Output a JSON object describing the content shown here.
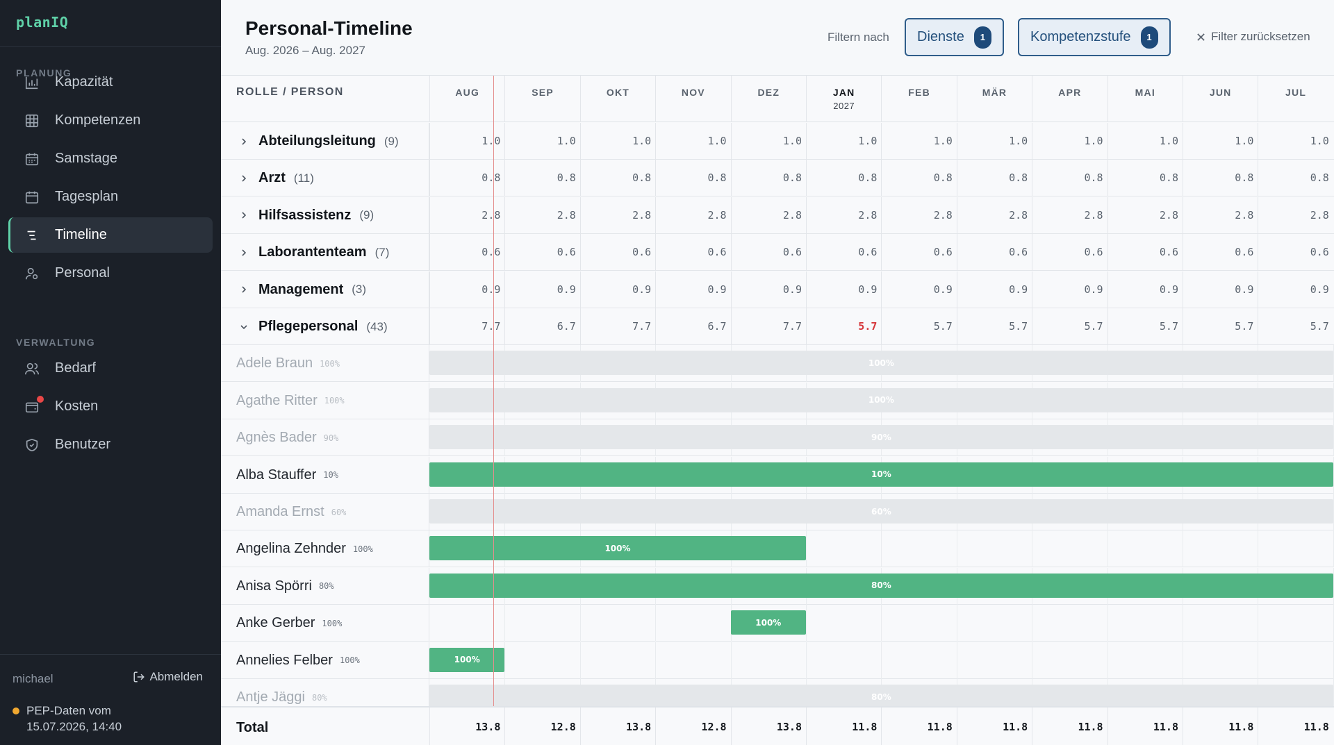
{
  "app": {
    "brand": "planIQ"
  },
  "sidebar": {
    "sections": [
      {
        "label": "PLANUNG",
        "items": [
          {
            "label": "Kapazität",
            "icon": "bar-chart-icon"
          },
          {
            "label": "Kompetenzen",
            "icon": "grid-icon"
          },
          {
            "label": "Samstage",
            "icon": "calendar-icon"
          },
          {
            "label": "Tagesplan",
            "icon": "calendar-day-icon"
          },
          {
            "label": "Timeline",
            "icon": "timeline-icon",
            "active": true
          },
          {
            "label": "Personal",
            "icon": "person-settings-icon"
          }
        ]
      },
      {
        "label": "VERWALTUNG",
        "items": [
          {
            "label": "Bedarf",
            "icon": "users-icon"
          },
          {
            "label": "Kosten",
            "icon": "wallet-icon",
            "notification": true
          },
          {
            "label": "Benutzer",
            "icon": "shield-icon"
          }
        ]
      }
    ],
    "user": "michael",
    "logout_label": "Abmelden",
    "pep_status": {
      "line1": "PEP-Daten vom",
      "line2": "15.07.2026, 14:40",
      "color": "#f0a830"
    }
  },
  "header": {
    "title": "Personal-Timeline",
    "subtitle": "Aug. 2026 – Aug. 2027",
    "filter_label": "Filtern nach",
    "filters": [
      {
        "label": "Dienste",
        "count": "1"
      },
      {
        "label": "Kompetenzstufe",
        "count": "1"
      }
    ],
    "reset_label": "Filter zurücksetzen"
  },
  "table": {
    "role_header": "ROLLE / PERSON",
    "months": [
      {
        "label": "AUG",
        "year": ""
      },
      {
        "label": "SEP",
        "year": ""
      },
      {
        "label": "OKT",
        "year": ""
      },
      {
        "label": "NOV",
        "year": ""
      },
      {
        "label": "DEZ",
        "year": ""
      },
      {
        "label": "JAN",
        "year": "2027",
        "current": true
      },
      {
        "label": "FEB",
        "year": ""
      },
      {
        "label": "MÄR",
        "year": ""
      },
      {
        "label": "APR",
        "year": ""
      },
      {
        "label": "MAI",
        "year": ""
      },
      {
        "label": "JUN",
        "year": ""
      },
      {
        "label": "JUL",
        "year": ""
      }
    ],
    "groups": [
      {
        "name": "Abteilungsleitung",
        "count": "(9)",
        "expanded": false,
        "values": [
          "1.0",
          "1.0",
          "1.0",
          "1.0",
          "1.0",
          "1.0",
          "1.0",
          "1.0",
          "1.0",
          "1.0",
          "1.0",
          "1.0"
        ]
      },
      {
        "name": "Arzt",
        "count": "(11)",
        "expanded": false,
        "values": [
          "0.8",
          "0.8",
          "0.8",
          "0.8",
          "0.8",
          "0.8",
          "0.8",
          "0.8",
          "0.8",
          "0.8",
          "0.8",
          "0.8"
        ]
      },
      {
        "name": "Hilfsassistenz",
        "count": "(9)",
        "expanded": false,
        "values": [
          "2.8",
          "2.8",
          "2.8",
          "2.8",
          "2.8",
          "2.8",
          "2.8",
          "2.8",
          "2.8",
          "2.8",
          "2.8",
          "2.8"
        ]
      },
      {
        "name": "Laborantenteam",
        "count": "(7)",
        "expanded": false,
        "values": [
          "0.6",
          "0.6",
          "0.6",
          "0.6",
          "0.6",
          "0.6",
          "0.6",
          "0.6",
          "0.6",
          "0.6",
          "0.6",
          "0.6"
        ]
      },
      {
        "name": "Management",
        "count": "(3)",
        "expanded": false,
        "values": [
          "0.9",
          "0.9",
          "0.9",
          "0.9",
          "0.9",
          "0.9",
          "0.9",
          "0.9",
          "0.9",
          "0.9",
          "0.9",
          "0.9"
        ]
      },
      {
        "name": "Pflegepersonal",
        "count": "(43)",
        "expanded": true,
        "warn_index": 5,
        "values": [
          "7.7",
          "6.7",
          "7.7",
          "6.7",
          "7.7",
          "5.7",
          "5.7",
          "5.7",
          "5.7",
          "5.7",
          "5.7",
          "5.7"
        ]
      }
    ],
    "persons": [
      {
        "name": "Adele Braun",
        "pct": "100%",
        "dim": true,
        "bar": {
          "start": 0,
          "end": 12,
          "label": "100%"
        }
      },
      {
        "name": "Agathe Ritter",
        "pct": "100%",
        "dim": true,
        "bar": {
          "start": 0,
          "end": 12,
          "label": "100%"
        }
      },
      {
        "name": "Agnès Bader",
        "pct": "90%",
        "dim": true,
        "bar": {
          "start": 0,
          "end": 12,
          "label": "90%"
        }
      },
      {
        "name": "Alba Stauffer",
        "pct": "10%",
        "dim": false,
        "bar": {
          "start": 0,
          "end": 12,
          "label": "10%"
        }
      },
      {
        "name": "Amanda Ernst",
        "pct": "60%",
        "dim": true,
        "bar": {
          "start": 0,
          "end": 12,
          "label": "60%"
        }
      },
      {
        "name": "Angelina Zehnder",
        "pct": "100%",
        "dim": false,
        "bar": {
          "start": 0,
          "end": 5,
          "label": "100%"
        }
      },
      {
        "name": "Anisa Spörri",
        "pct": "80%",
        "dim": false,
        "bar": {
          "start": 0,
          "end": 12,
          "label": "80%"
        }
      },
      {
        "name": "Anke Gerber",
        "pct": "100%",
        "dim": false,
        "bar": {
          "start": 4,
          "end": 5,
          "label": "100%"
        }
      },
      {
        "name": "Annelies Felber",
        "pct": "100%",
        "dim": false,
        "bar": {
          "start": 0,
          "end": 1,
          "label": "100%"
        }
      },
      {
        "name": "Antje Jäggi",
        "pct": "80%",
        "dim": true,
        "bar": {
          "start": 0,
          "end": 12,
          "label": "80%"
        }
      }
    ],
    "total_label": "Total",
    "totals": [
      "13.8",
      "12.8",
      "13.8",
      "12.8",
      "13.8",
      "11.8",
      "11.8",
      "11.8",
      "11.8",
      "11.8",
      "11.8",
      "11.8"
    ]
  },
  "colors": {
    "accent": "#5fd1a8",
    "bar_active": "#51b483",
    "bar_inactive": "#e4e7ea",
    "warning": "#d6373b",
    "today_line": "#e48d8d"
  }
}
